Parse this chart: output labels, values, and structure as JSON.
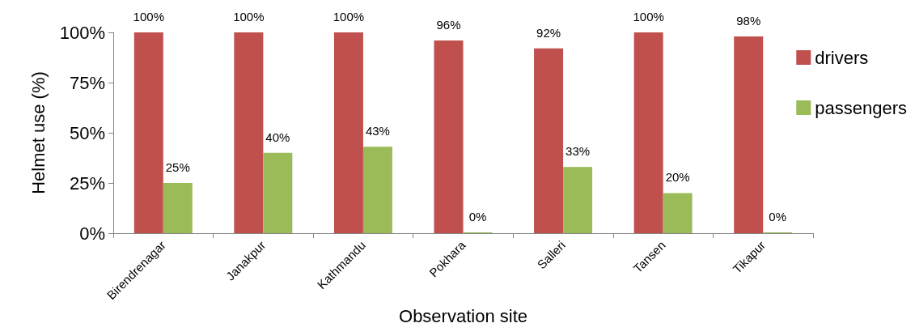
{
  "chart_data": {
    "type": "bar",
    "xlabel": "Observation site",
    "ylabel": "Helmet use (%)",
    "categories": [
      "Birendrenagar",
      "Janakpur",
      "Kathmandu",
      "Pokhara",
      "Salleri",
      "Tansen",
      "Tikapur"
    ],
    "series": [
      {
        "name": "drivers",
        "color": "#c0504d",
        "values": [
          100,
          100,
          100,
          96,
          92,
          100,
          98
        ],
        "value_labels": [
          "100%",
          "100%",
          "100%",
          "96%",
          "92%",
          "100%",
          "98%"
        ]
      },
      {
        "name": "passengers",
        "color": "#9bbb59",
        "values": [
          25,
          40,
          43,
          0,
          33,
          20,
          0
        ],
        "value_labels": [
          "25%",
          "40%",
          "43%",
          "0%",
          "33%",
          "20%",
          "0%"
        ]
      }
    ],
    "ylim": [
      0,
      100
    ],
    "yticks": [
      {
        "value": 0,
        "label": "0%"
      },
      {
        "value": 25,
        "label": "25%"
      },
      {
        "value": 50,
        "label": "50%"
      },
      {
        "value": 75,
        "label": "75%"
      },
      {
        "value": 100,
        "label": "100%"
      }
    ],
    "grid": false,
    "legend": "right"
  }
}
